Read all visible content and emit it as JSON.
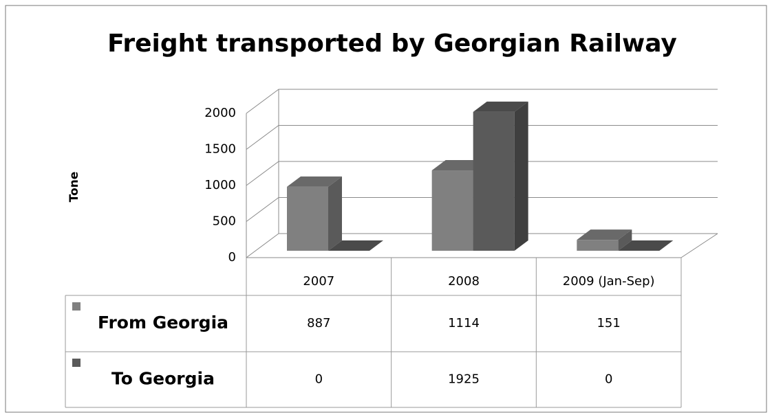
{
  "chart_data": {
    "type": "bar3d",
    "title": "Freight transported by Georgian Railway",
    "y_label": "Tone",
    "categories": [
      "2007",
      "2008",
      "2009 (Jan-Sep)"
    ],
    "series": [
      {
        "name": "From Georgia",
        "color": "#808080",
        "values": [
          887,
          1114,
          151
        ]
      },
      {
        "name": "To Georgia",
        "color": "#5a5a5a",
        "values": [
          0,
          1925,
          0
        ]
      }
    ],
    "ylim": [
      0,
      2000
    ],
    "yticks": [
      0,
      500,
      1000,
      1500,
      2000
    ],
    "grid": true
  }
}
